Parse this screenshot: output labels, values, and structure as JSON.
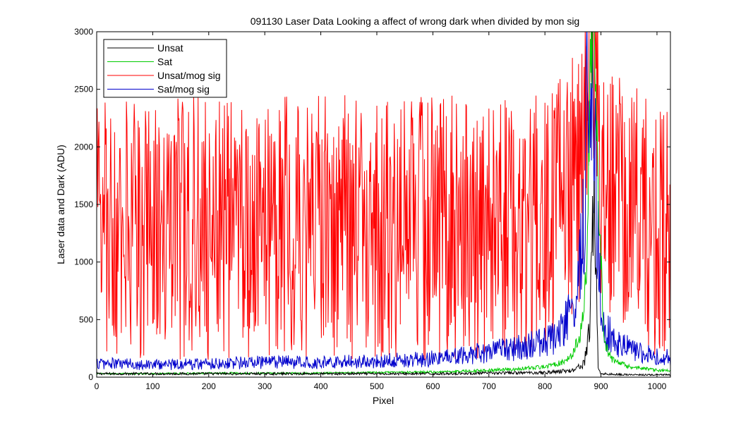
{
  "chart_data": {
    "type": "line",
    "title": "091130 Laser Data  Looking a affect of wrong dark when divided by mon sig",
    "xlabel": "Pixel",
    "ylabel": "Laser data and Dark (ADU)",
    "xlim": [
      0,
      1024
    ],
    "ylim": [
      0,
      3000
    ],
    "xticks": [
      0,
      100,
      200,
      300,
      400,
      500,
      600,
      700,
      800,
      900,
      1000
    ],
    "yticks": [
      0,
      500,
      1000,
      1500,
      2000,
      2500,
      3000
    ],
    "grid": false,
    "legend_position": "top-left",
    "series": [
      {
        "name": "Unsat",
        "color": "#000000",
        "x": [
          0,
          100,
          200,
          300,
          400,
          500,
          600,
          700,
          800,
          850,
          870,
          880,
          885,
          890,
          895,
          900,
          920,
          960,
          1000,
          1024
        ],
        "y": [
          30,
          30,
          30,
          30,
          30,
          30,
          30,
          35,
          40,
          60,
          120,
          400,
          1600,
          1200,
          80,
          30,
          25,
          20,
          20,
          20
        ]
      },
      {
        "name": "Sat",
        "color": "#00cc00",
        "x": [
          0,
          100,
          200,
          300,
          400,
          500,
          600,
          700,
          750,
          800,
          830,
          850,
          865,
          875,
          882,
          888,
          895,
          905,
          920,
          950,
          1000,
          1024
        ],
        "y": [
          30,
          30,
          35,
          35,
          35,
          40,
          45,
          60,
          70,
          90,
          130,
          200,
          400,
          900,
          3000,
          3000,
          1800,
          300,
          150,
          90,
          60,
          55
        ]
      },
      {
        "name": "Unsat/mog sig",
        "color": "#ff0000",
        "x": [
          0,
          100,
          200,
          300,
          400,
          500,
          600,
          700,
          800,
          870,
          880,
          890,
          900,
          1000,
          1024
        ],
        "y": [
          1300,
          1300,
          1300,
          1300,
          1300,
          1300,
          1300,
          1300,
          1300,
          1800,
          3000,
          3000,
          1600,
          1300,
          1300
        ]
      },
      {
        "name": "Sat/mog sig",
        "color": "#0000cc",
        "x": [
          0,
          100,
          200,
          300,
          400,
          500,
          600,
          650,
          700,
          750,
          800,
          830,
          850,
          860,
          870,
          878,
          885,
          892,
          900,
          910,
          930,
          960,
          1000,
          1024
        ],
        "y": [
          120,
          110,
          120,
          130,
          130,
          140,
          160,
          180,
          220,
          250,
          300,
          400,
          600,
          850,
          1300,
          3000,
          3000,
          1500,
          600,
          400,
          300,
          220,
          180,
          170
        ]
      }
    ]
  }
}
